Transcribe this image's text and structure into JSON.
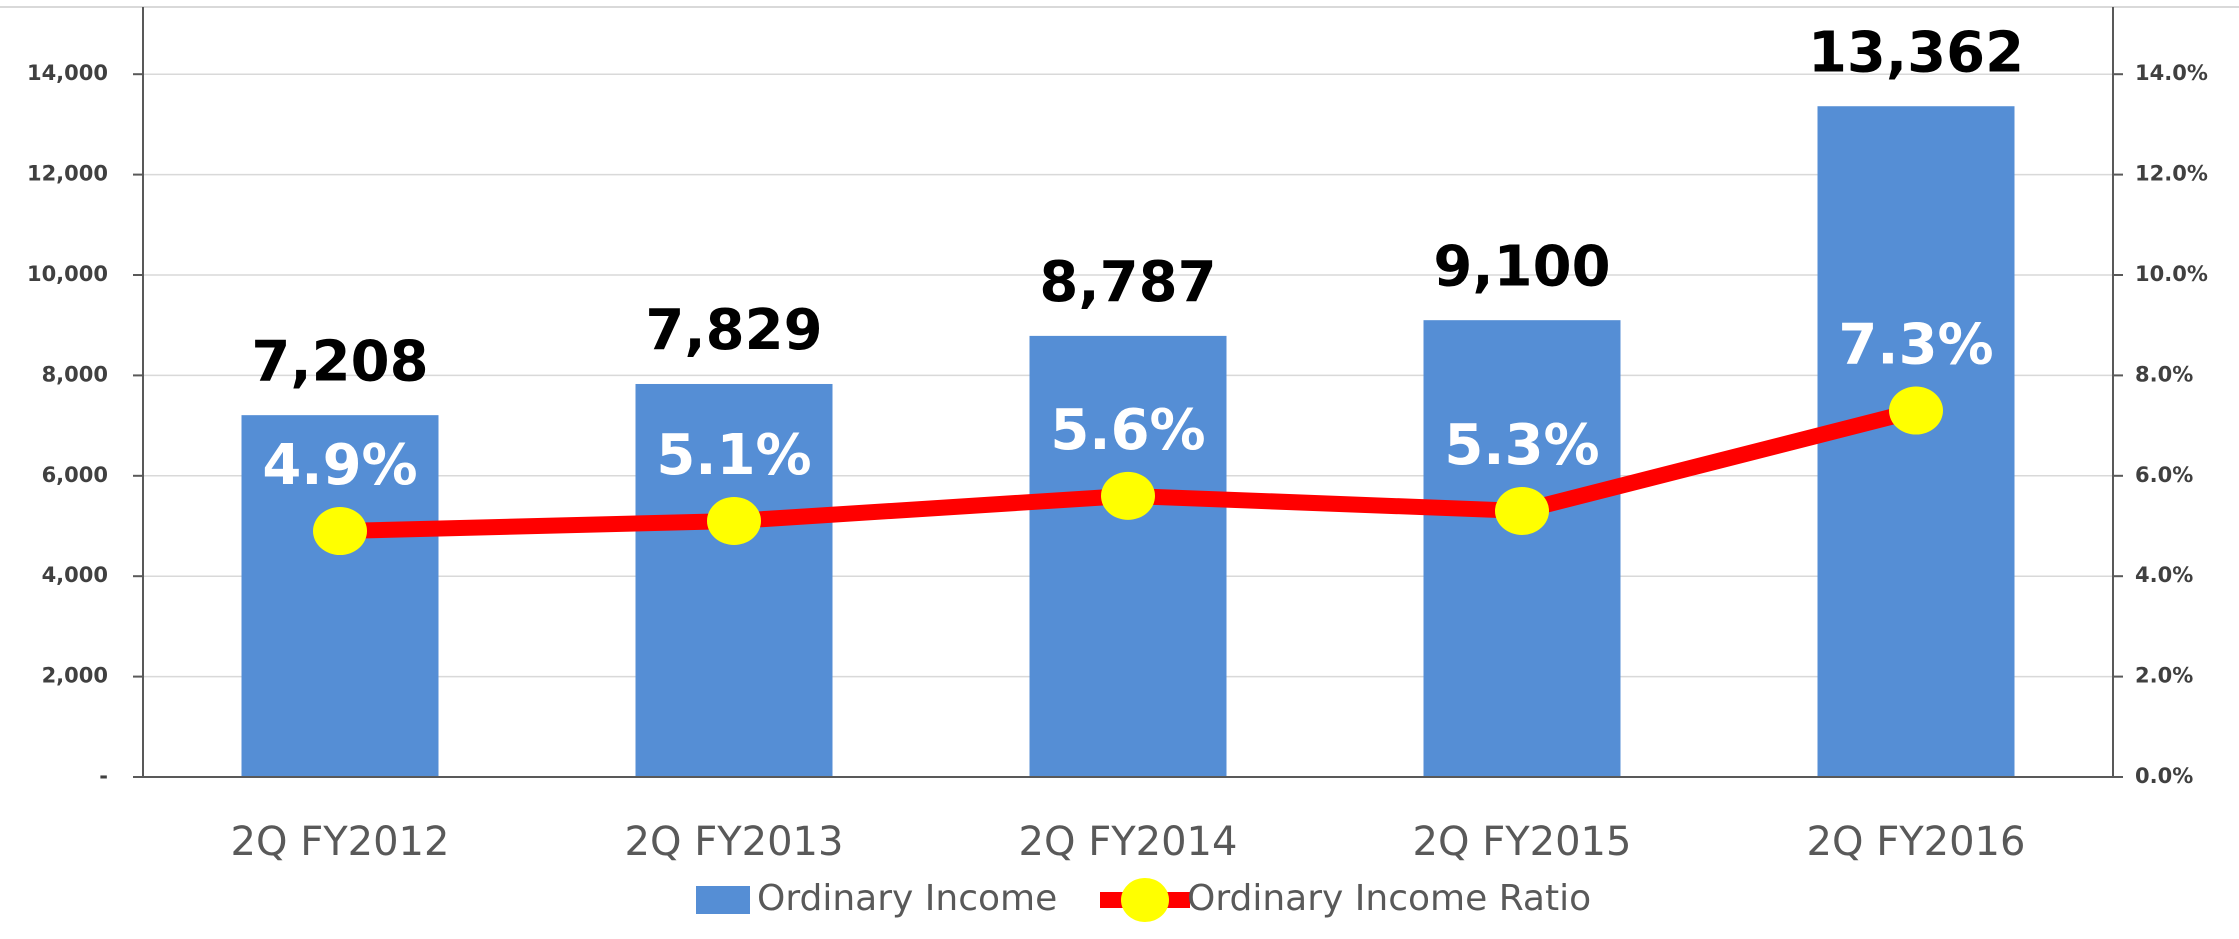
{
  "chart_data": {
    "type": "bar",
    "categories": [
      "2Q FY2012",
      "2Q FY2013",
      "2Q FY2014",
      "2Q FY2015",
      "2Q FY2016"
    ],
    "series": [
      {
        "name": "Ordinary Income",
        "type": "bar",
        "color": "#558ed5",
        "values": [
          7208,
          7829,
          8787,
          9100,
          13362
        ],
        "value_labels": [
          "7,208",
          "7,829",
          "8,787",
          "9,100",
          "13,362"
        ]
      },
      {
        "name": "Ordinary Income Ratio",
        "type": "line",
        "axis": "y2",
        "color": "#ff0000",
        "marker_color": "#ffff00",
        "values": [
          4.9,
          5.1,
          5.6,
          5.3,
          7.3
        ],
        "value_labels": [
          "4.9%",
          "5.1%",
          "5.6%",
          "5.3%",
          "7.3%"
        ]
      }
    ],
    "ylim": [
      0,
      15000
    ],
    "yticks": [
      {
        "value": 0,
        "label": "-"
      },
      {
        "value": 2000,
        "label": "2,000"
      },
      {
        "value": 4000,
        "label": "4,000"
      },
      {
        "value": 6000,
        "label": "6,000"
      },
      {
        "value": 8000,
        "label": "8,000"
      },
      {
        "value": 10000,
        "label": "10,000"
      },
      {
        "value": 12000,
        "label": "12,000"
      },
      {
        "value": 14000,
        "label": "14,000"
      }
    ],
    "y2lim": [
      0,
      15
    ],
    "y2ticks": [
      {
        "value": 0,
        "label": "0.0%"
      },
      {
        "value": 2,
        "label": "2.0%"
      },
      {
        "value": 4,
        "label": "4.0%"
      },
      {
        "value": 6,
        "label": "6.0%"
      },
      {
        "value": 8,
        "label": "8.0%"
      },
      {
        "value": 10,
        "label": "10.0%"
      },
      {
        "value": 12,
        "label": "12.0%"
      },
      {
        "value": 14,
        "label": "14.0%"
      }
    ],
    "grid": true,
    "legend": "bottom"
  }
}
